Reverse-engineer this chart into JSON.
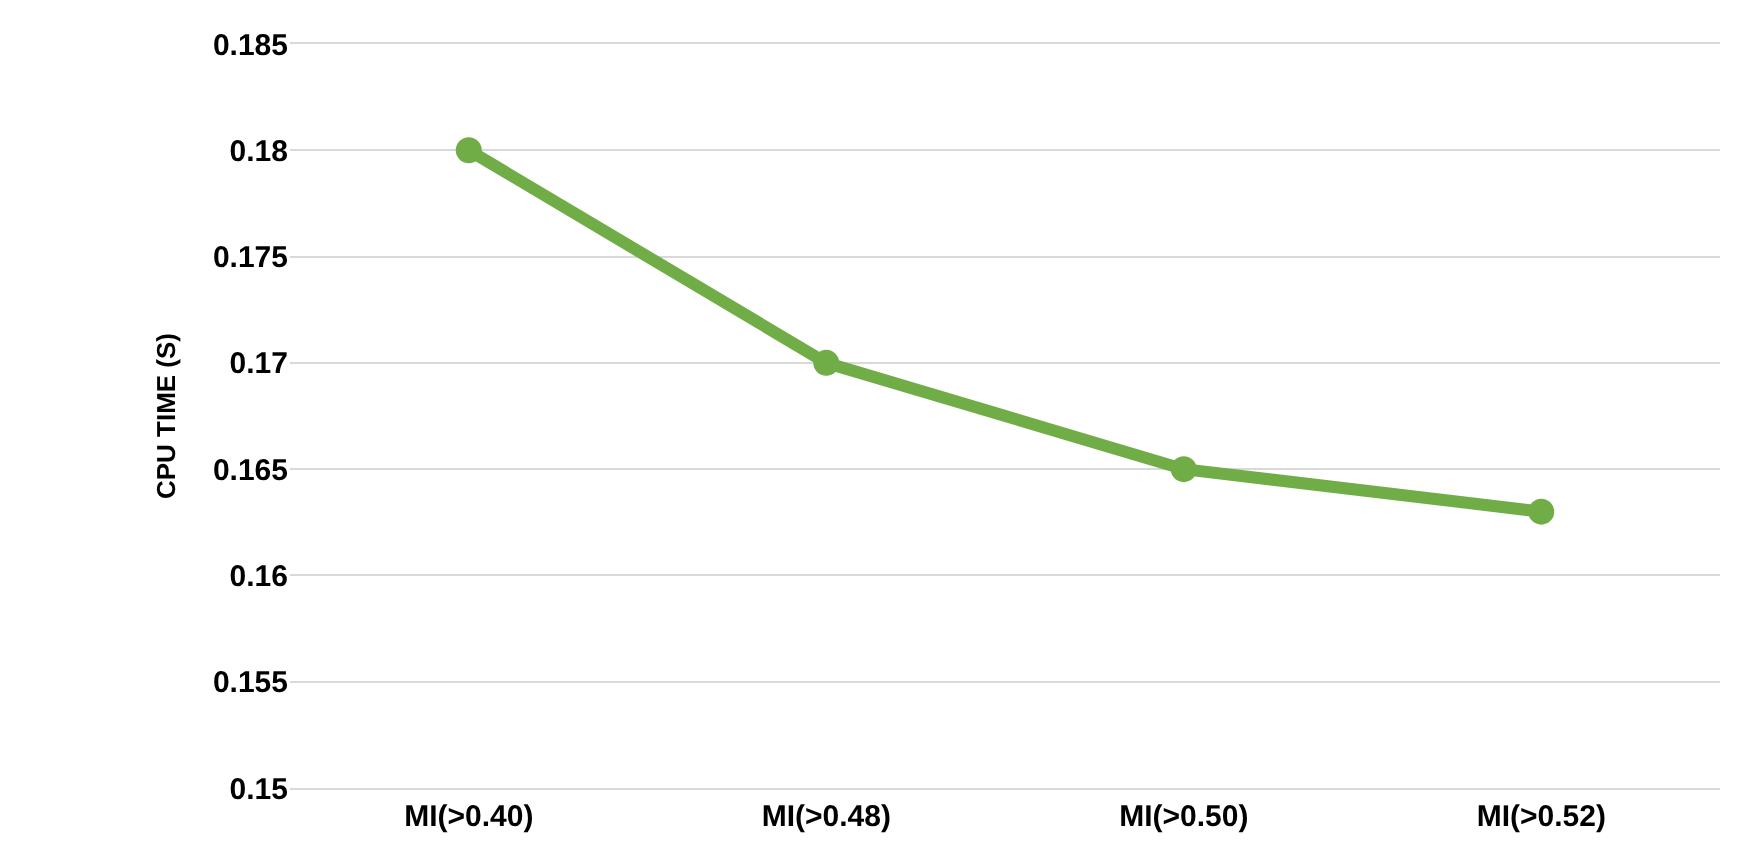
{
  "chart_data": {
    "type": "line",
    "ylabel": "CPU TIME (S)",
    "categories": [
      "MI(>0.40)",
      "MI(>0.48)",
      "MI(>0.50)",
      "MI(>0.52)"
    ],
    "series": [
      {
        "color": "#70ad47",
        "values": [
          0.18,
          0.17,
          0.165,
          0.163
        ]
      }
    ],
    "ylim": [
      0.15,
      0.185
    ],
    "yticks": [
      0.15,
      0.155,
      0.16,
      0.165,
      0.17,
      0.175,
      0.18,
      0.185
    ],
    "grid": "y",
    "marker": "circle",
    "line_style": "solid"
  }
}
